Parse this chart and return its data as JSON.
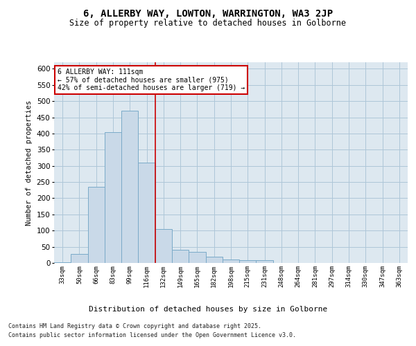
{
  "title1": "6, ALLERBY WAY, LOWTON, WARRINGTON, WA3 2JP",
  "title2": "Size of property relative to detached houses in Golborne",
  "xlabel": "Distribution of detached houses by size in Golborne",
  "ylabel": "Number of detached properties",
  "categories": [
    "33sqm",
    "50sqm",
    "66sqm",
    "83sqm",
    "99sqm",
    "116sqm",
    "132sqm",
    "149sqm",
    "165sqm",
    "182sqm",
    "198sqm",
    "215sqm",
    "231sqm",
    "248sqm",
    "264sqm",
    "281sqm",
    "297sqm",
    "314sqm",
    "330sqm",
    "347sqm",
    "363sqm"
  ],
  "values": [
    2,
    28,
    235,
    405,
    470,
    310,
    105,
    40,
    35,
    20,
    10,
    8,
    8,
    1,
    0,
    0,
    0,
    0,
    0,
    1,
    0
  ],
  "bar_facecolor": "#c9d9e8",
  "bar_edgecolor": "#7aaac8",
  "vline_x": 5.5,
  "vline_color": "#cc0000",
  "annotation_text": "6 ALLERBY WAY: 111sqm\n← 57% of detached houses are smaller (975)\n42% of semi-detached houses are larger (719) →",
  "annotation_box_edgecolor": "#cc0000",
  "annotation_box_facecolor": "white",
  "grid_color": "#aec6d8",
  "background_color": "#dde8f0",
  "footer_line1": "Contains HM Land Registry data © Crown copyright and database right 2025.",
  "footer_line2": "Contains public sector information licensed under the Open Government Licence v3.0.",
  "ylim": [
    0,
    620
  ],
  "yticks": [
    0,
    50,
    100,
    150,
    200,
    250,
    300,
    350,
    400,
    450,
    500,
    550,
    600
  ]
}
